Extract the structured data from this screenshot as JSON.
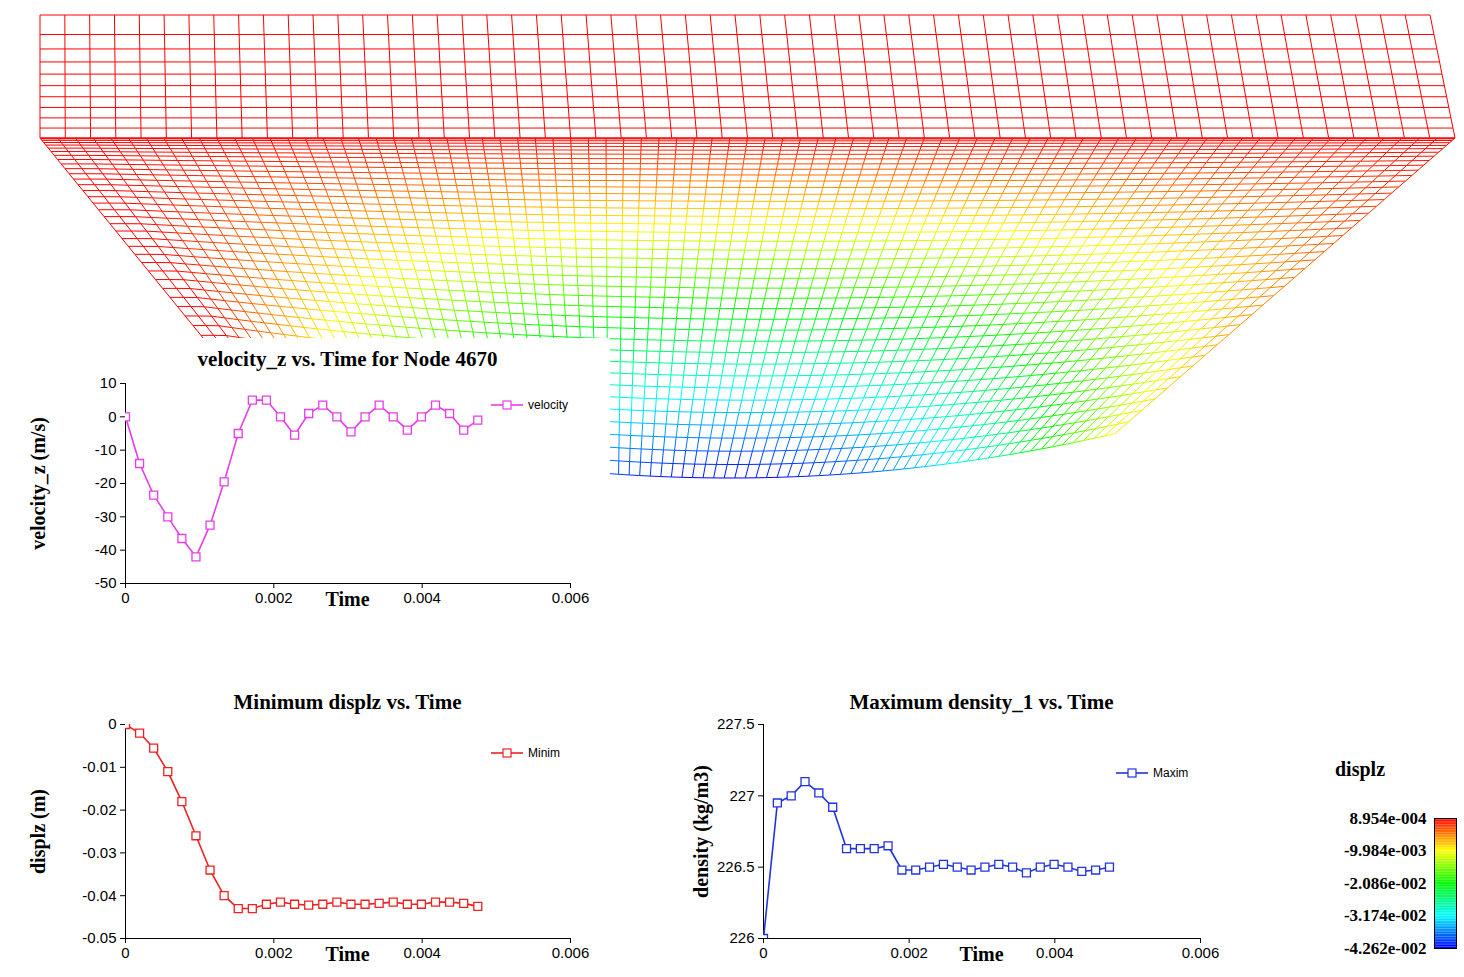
{
  "chart_data": [
    {
      "type": "line",
      "title": "velocity_z vs. Time for Node 4670",
      "x_label": "Time",
      "y_label": "velocity_z (m/s)",
      "x": [
        0,
        0.00019,
        0.00038,
        0.00057,
        0.00076,
        0.00095,
        0.00114,
        0.00133,
        0.00152,
        0.00171,
        0.0019,
        0.00209,
        0.00228,
        0.00247,
        0.00266,
        0.00285,
        0.00304,
        0.00323,
        0.00342,
        0.00361,
        0.0038,
        0.00399,
        0.00418,
        0.00437,
        0.00456,
        0.00475
      ],
      "series": [
        {
          "name": "velocity",
          "color": "#e83ee8",
          "marker": "square",
          "values": [
            0,
            -14,
            -23.5,
            -30,
            -36.5,
            -42,
            -32.5,
            -19.5,
            -5,
            5,
            5,
            0,
            -5.5,
            1,
            3.5,
            0,
            -4.5,
            0,
            3.5,
            0,
            -4,
            0,
            3.5,
            1,
            -4,
            -1
          ]
        }
      ],
      "xlim": [
        0,
        0.006
      ],
      "xticks": [
        0,
        0.002,
        0.004,
        0.006
      ],
      "ylim": [
        -50,
        10
      ],
      "yticks": [
        -50,
        -40,
        -30,
        -20,
        -10,
        0,
        10
      ],
      "legend": "top-right"
    },
    {
      "type": "line",
      "title": "Minimum displz vs. Time",
      "x_label": "Time",
      "y_label": "displz (m)",
      "x": [
        0,
        0.00019,
        0.00038,
        0.00057,
        0.00076,
        0.00095,
        0.00114,
        0.00133,
        0.00152,
        0.00171,
        0.0019,
        0.00209,
        0.00228,
        0.00247,
        0.00266,
        0.00285,
        0.00304,
        0.00323,
        0.00342,
        0.00361,
        0.0038,
        0.00399,
        0.00418,
        0.00437,
        0.00456,
        0.00475
      ],
      "series": [
        {
          "name": "Minim",
          "color": "#ee2222",
          "marker": "square",
          "values": [
            0,
            -0.002,
            -0.0055,
            -0.011,
            -0.018,
            -0.026,
            -0.034,
            -0.04,
            -0.043,
            -0.043,
            -0.042,
            -0.0415,
            -0.042,
            -0.0422,
            -0.042,
            -0.0415,
            -0.042,
            -0.042,
            -0.0418,
            -0.0415,
            -0.042,
            -0.042,
            -0.0415,
            -0.0415,
            -0.0418,
            -0.0425
          ]
        }
      ],
      "xlim": [
        0,
        0.006
      ],
      "xticks": [
        0,
        0.002,
        0.004,
        0.006
      ],
      "ylim": [
        -0.05,
        0
      ],
      "yticks": [
        -0.05,
        -0.04,
        -0.03,
        -0.02,
        -0.01,
        0
      ],
      "legend": "top-right"
    },
    {
      "type": "line",
      "title": "Maximum density_1 vs. Time",
      "x_label": "Time",
      "y_label": "density (kg/m3)",
      "x": [
        0,
        0.00019,
        0.00038,
        0.00057,
        0.00076,
        0.00095,
        0.00114,
        0.00133,
        0.00152,
        0.00171,
        0.0019,
        0.00209,
        0.00228,
        0.00247,
        0.00266,
        0.00285,
        0.00304,
        0.00323,
        0.00342,
        0.00361,
        0.0038,
        0.00399,
        0.00418,
        0.00437,
        0.00456,
        0.00475
      ],
      "series": [
        {
          "name": "Maxim",
          "color": "#2233dd",
          "marker": "square",
          "values": [
            226,
            226.95,
            227,
            227.1,
            227.02,
            226.92,
            226.63,
            226.63,
            226.63,
            226.65,
            226.48,
            226.48,
            226.5,
            226.52,
            226.5,
            226.48,
            226.5,
            226.52,
            226.5,
            226.46,
            226.5,
            226.52,
            226.5,
            226.47,
            226.48,
            226.5
          ]
        }
      ],
      "xlim": [
        0,
        0.006
      ],
      "xticks": [
        0,
        0.002,
        0.004,
        0.006
      ],
      "ylim": [
        226,
        227.5
      ],
      "yticks": [
        226,
        226.5,
        227,
        227.5
      ],
      "legend": "top-right"
    },
    {
      "type": "mesh",
      "colorbar": {
        "title": "displz",
        "range": [
          -0.04262,
          0.0008954
        ],
        "ticks": [
          {
            "value": 0.0008954,
            "label": "8.954e-004"
          },
          {
            "value": -0.009984,
            "label": "-9.984e-003"
          },
          {
            "value": -0.02086,
            "label": "-2.086e-002"
          },
          {
            "value": -0.03174,
            "label": "-3.174e-002"
          },
          {
            "value": -0.04262,
            "label": "-4.262e-002"
          }
        ]
      }
    }
  ]
}
